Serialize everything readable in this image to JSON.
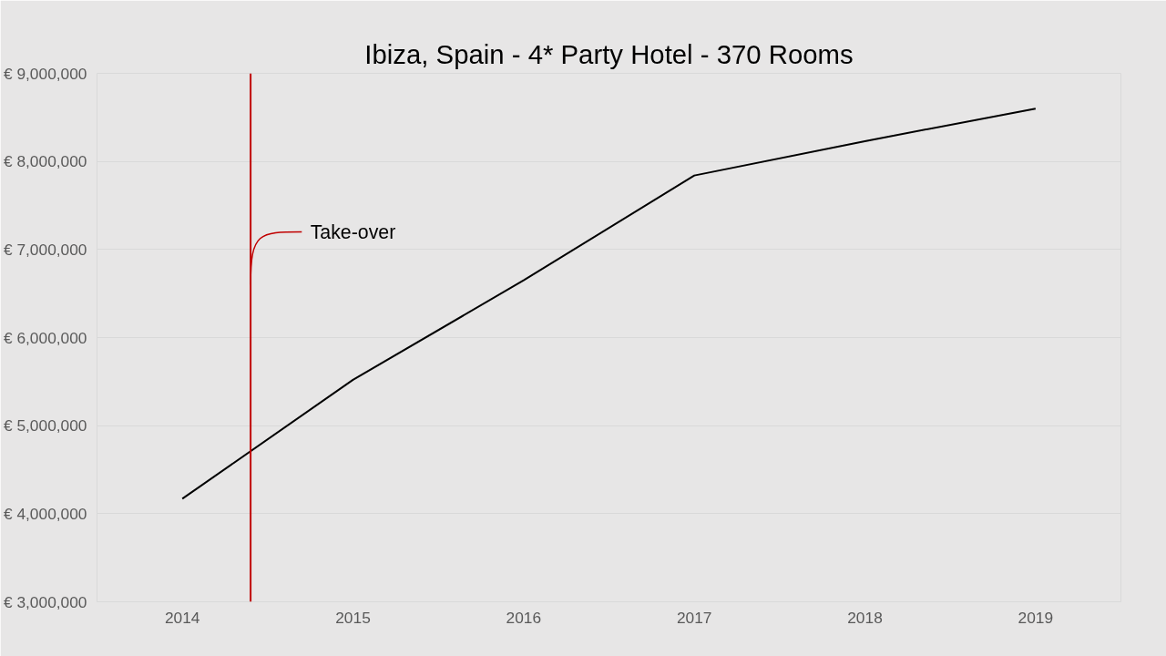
{
  "chart_data": {
    "type": "line",
    "title": "Ibiza, Spain - 4* Party Hotel - 370 Rooms",
    "x": [
      2014,
      2015,
      2016,
      2017,
      2018,
      2019
    ],
    "series": [
      {
        "color": "#000000",
        "values": [
          4170000,
          5520000,
          6650000,
          7840000,
          8230000,
          8600000
        ]
      }
    ],
    "xlim": [
      2013.5,
      2019.5
    ],
    "xticks": [
      2014,
      2015,
      2016,
      2017,
      2018,
      2019
    ],
    "ylim": [
      3000000,
      9000000
    ],
    "yticks": [
      {
        "value": 3000000,
        "label": "€ 3,000,000"
      },
      {
        "value": 4000000,
        "label": "€ 4,000,000"
      },
      {
        "value": 5000000,
        "label": "€ 5,000,000"
      },
      {
        "value": 6000000,
        "label": "€ 6,000,000"
      },
      {
        "value": 7000000,
        "label": "€ 7,000,000"
      },
      {
        "value": 8000000,
        "label": "€ 8,000,000"
      },
      {
        "value": 9000000,
        "label": "€ 9,000,000"
      }
    ],
    "grid": "y",
    "marker": "none",
    "line_style": "solid",
    "ref_lines": [
      {
        "axis": "x",
        "value": 2014.4,
        "label": "Take-over",
        "color": "#c00000"
      }
    ]
  }
}
